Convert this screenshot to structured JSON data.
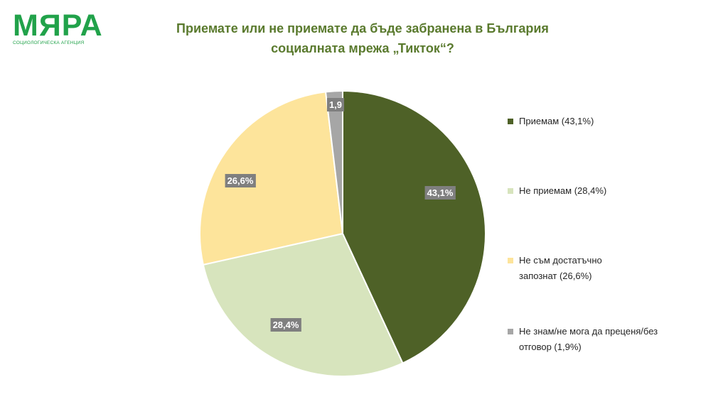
{
  "logo": {
    "name": "МЯРА",
    "tagline": "СОЦИОЛОГИЧЕСКА АГЕНЦИЯ"
  },
  "chart_data": {
    "type": "pie",
    "title_lines": [
      "Приемате или не приемате да бъде забранена в България",
      "социалната мрежа „Тикток“?"
    ],
    "slices": [
      {
        "name": "Приемам (43,1%)",
        "value": 43.1,
        "label": "43,1%",
        "color": "#4e6127"
      },
      {
        "name": "Не приемам (28,4%)",
        "value": 28.4,
        "label": "28,4%",
        "color": "#d7e4bd"
      },
      {
        "name": "Не съм достатъчно запознат (26,6%)",
        "value": 26.6,
        "label": "26,6%",
        "color": "#fde49b"
      },
      {
        "name": "Не знам/не мога да преценя/без отговор (1,9%)",
        "value": 1.9,
        "label": "1,9",
        "color": "#a6a6a6"
      }
    ],
    "data_label_bg": "#7f7f7f",
    "legend_position": "right"
  }
}
